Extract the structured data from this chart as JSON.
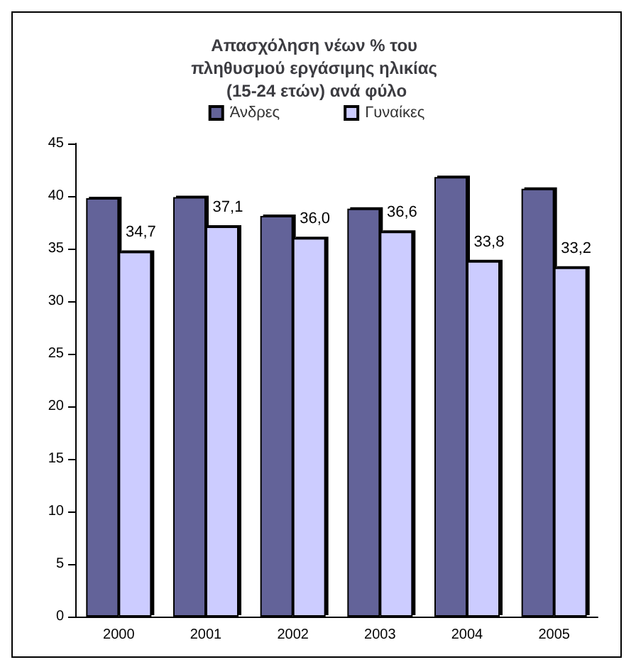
{
  "chart_data": {
    "type": "bar",
    "title": "Απασχόληση νέων % του πληθυσμού εργάσιμης ηλικίας (15-24 ετών) ανά φύλο",
    "categories": [
      "2000",
      "2001",
      "2002",
      "2003",
      "2004",
      "2005"
    ],
    "series": [
      {
        "name": "Άνδρες",
        "color": "#636399",
        "values": [
          39.8,
          39.9,
          38.1,
          38.8,
          41.8,
          40.7
        ]
      },
      {
        "name": "Γυναίκες",
        "color": "#ccccff",
        "values": [
          34.7,
          37.1,
          36.0,
          36.6,
          33.8,
          33.2
        ],
        "value_labels": [
          "34,7",
          "37,1",
          "36,0",
          "36,6",
          "33,8",
          "33,2"
        ]
      }
    ],
    "ylim": [
      0,
      45
    ],
    "yticks": [
      0,
      5,
      10,
      15,
      20,
      25,
      30,
      35,
      40,
      45
    ],
    "grid": false,
    "legend": "top"
  }
}
